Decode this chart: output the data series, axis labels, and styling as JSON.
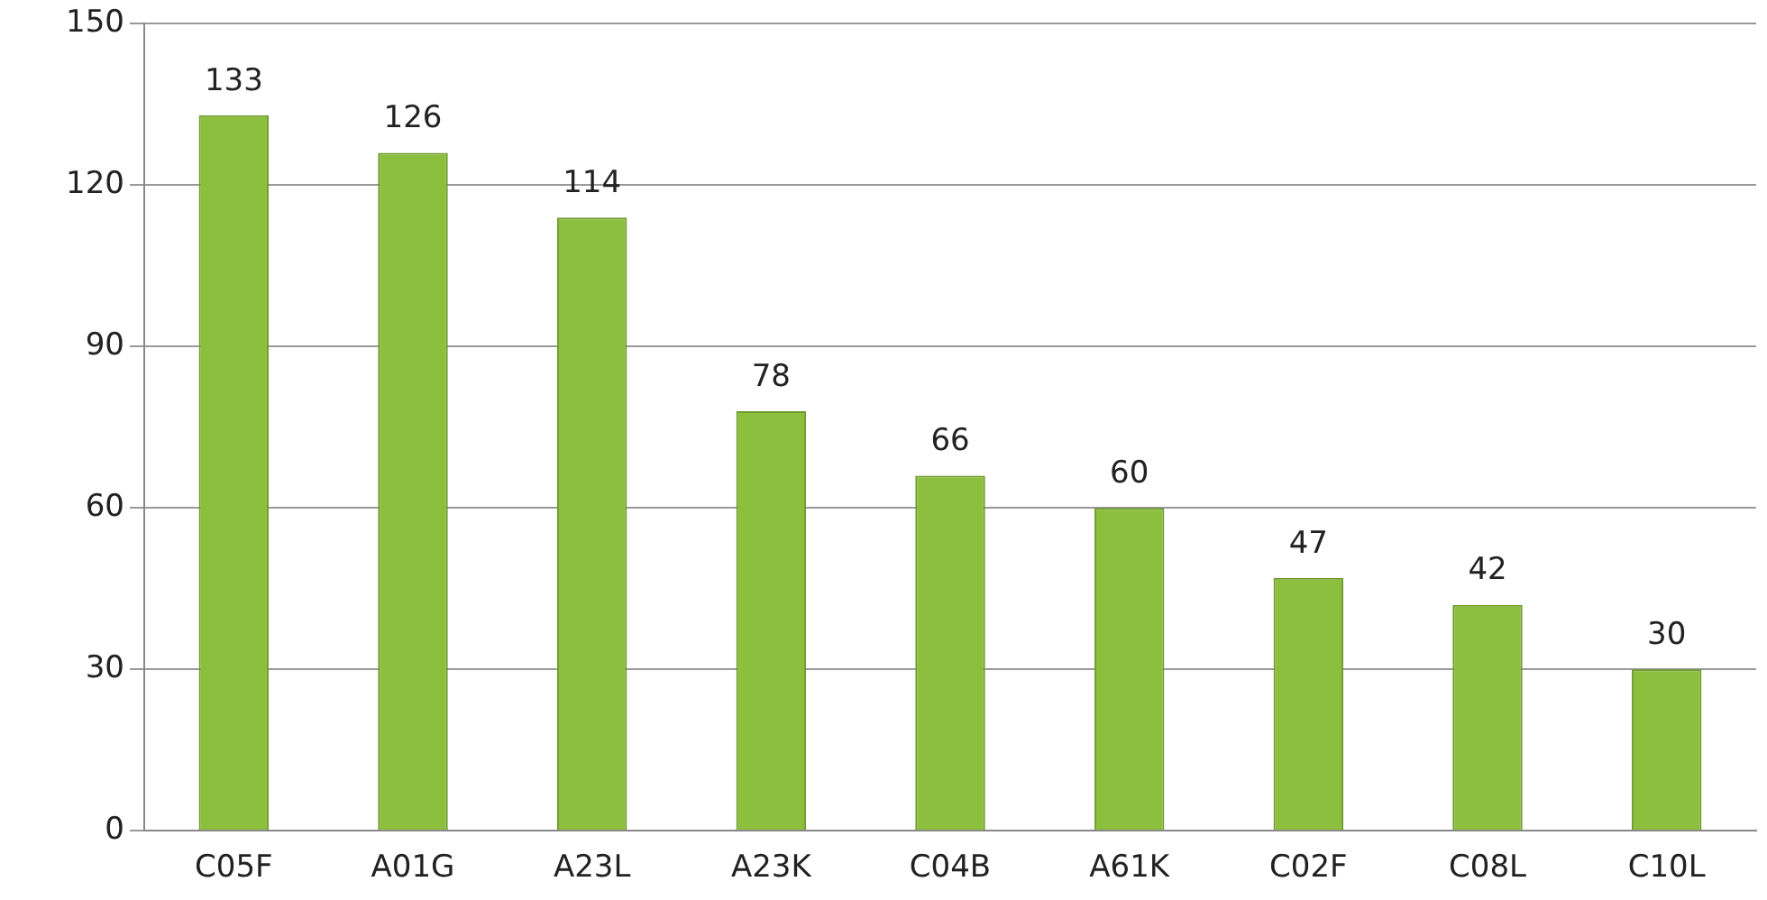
{
  "chart_data": {
    "type": "bar",
    "categories": [
      "C05F",
      "A01G",
      "A23L",
      "A23K",
      "C04B",
      "A61K",
      "C02F",
      "C08L",
      "C10L"
    ],
    "values": [
      133,
      126,
      114,
      78,
      66,
      60,
      47,
      42,
      30
    ],
    "color": "#8dbf3e",
    "ylim": [
      0,
      150
    ],
    "yticks": [
      0,
      30,
      60,
      90,
      120,
      150
    ],
    "grid": "y",
    "data_labels": true
  }
}
